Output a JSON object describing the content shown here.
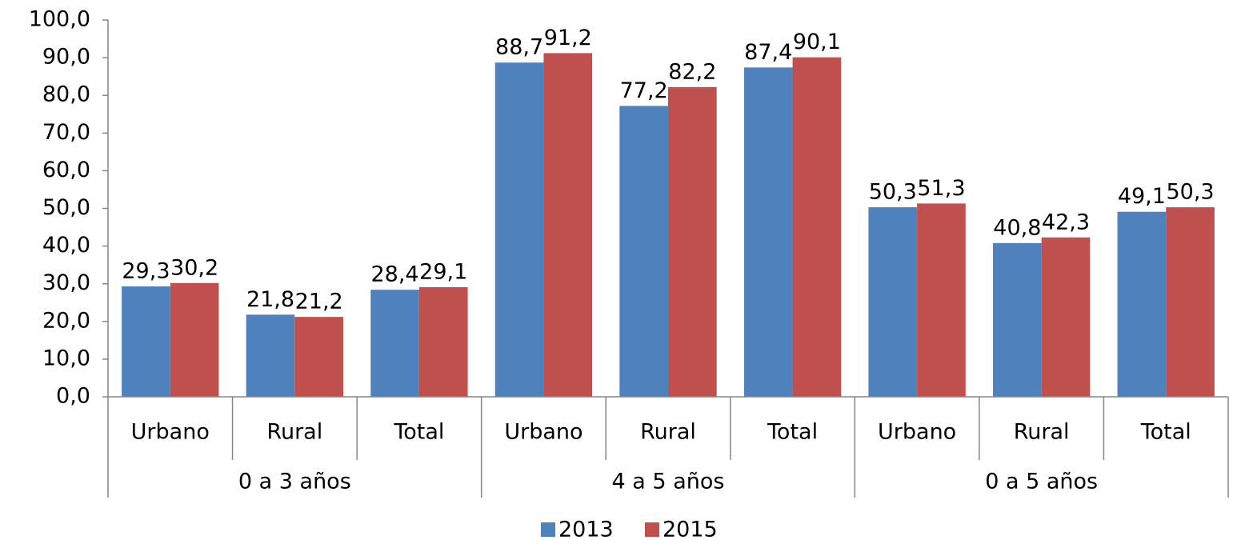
{
  "chart_data": {
    "type": "bar",
    "categories": [
      "Urbano",
      "Rural",
      "Total",
      "Urbano",
      "Rural",
      "Total",
      "Urbano",
      "Rural",
      "Total"
    ],
    "groups": [
      "0 a 3 años",
      "4 a 5 años",
      "0 a 5 años"
    ],
    "series": [
      {
        "name": "2013",
        "color": "#4f81bd",
        "values": [
          29.3,
          21.8,
          28.4,
          88.7,
          77.2,
          87.4,
          50.3,
          40.8,
          49.1
        ],
        "value_labels": [
          "29,3",
          "21,8",
          "28,4",
          "88,7",
          "77,2",
          "87,4",
          "50,3",
          "40,8",
          "49,1"
        ]
      },
      {
        "name": "2015",
        "color": "#c0504d",
        "values": [
          30.2,
          21.2,
          29.1,
          91.2,
          82.2,
          90.1,
          51.3,
          42.3,
          50.3
        ],
        "value_labels": [
          "30,2",
          "21,2",
          "29,1",
          "91,2",
          "82,2",
          "90,1",
          "51,3",
          "42,3",
          "50,3"
        ]
      }
    ],
    "ylim": [
      0,
      100
    ],
    "yticks": [
      {
        "value": 0,
        "label": "0,0"
      },
      {
        "value": 10,
        "label": "10,0"
      },
      {
        "value": 20,
        "label": "20,0"
      },
      {
        "value": 30,
        "label": "30,0"
      },
      {
        "value": 40,
        "label": "40,0"
      },
      {
        "value": 50,
        "label": "50,0"
      },
      {
        "value": 60,
        "label": "60,0"
      },
      {
        "value": 70,
        "label": "70,0"
      },
      {
        "value": 80,
        "label": "80,0"
      },
      {
        "value": 90,
        "label": "90,0"
      },
      {
        "value": 100,
        "label": "100,0"
      }
    ],
    "legend": "bottom"
  }
}
